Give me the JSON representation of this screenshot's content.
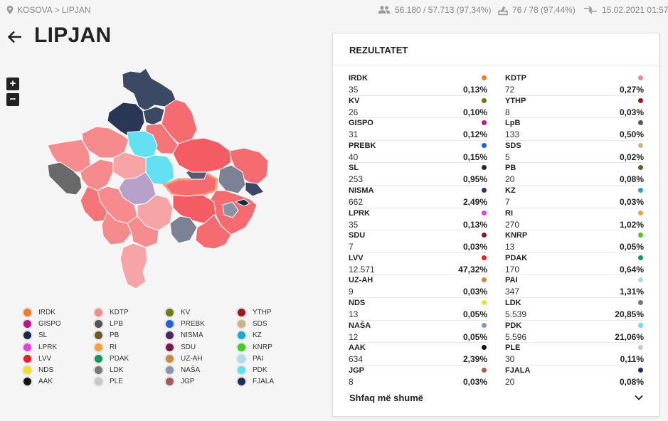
{
  "breadcrumb": {
    "root": "KOSOVA",
    "separator": ">",
    "current": "LIPJAN"
  },
  "stats": {
    "voters": "56.180 / 57.713 (97,34%)",
    "stations": "76 / 78 (97,44%)",
    "updated": "15.02.2021 01:57"
  },
  "page": {
    "title": "LIPJAN"
  },
  "zoom": {
    "in": "+",
    "out": "−"
  },
  "results": {
    "title": "REZULTATET",
    "show_more": "Shfaq më shumë",
    "left": [
      {
        "name": "IRDK",
        "votes": "35",
        "pct": "0,13%",
        "color": "#f47b20"
      },
      {
        "name": "KV",
        "votes": "26",
        "pct": "0,10%",
        "color": "#6e7b0a"
      },
      {
        "name": "GISPO",
        "votes": "31",
        "pct": "0,12%",
        "color": "#c0148c"
      },
      {
        "name": "PREBK",
        "votes": "40",
        "pct": "0,15%",
        "color": "#1f5fe6"
      },
      {
        "name": "SL",
        "votes": "253",
        "pct": "0,95%",
        "color": "#1b2a44"
      },
      {
        "name": "NISMA",
        "votes": "662",
        "pct": "2,49%",
        "color": "#4b2566"
      },
      {
        "name": "LPRK",
        "votes": "35",
        "pct": "0,13%",
        "color": "#e83fd6"
      },
      {
        "name": "SDU",
        "votes": "7",
        "pct": "0,03%",
        "color": "#7a1a44"
      },
      {
        "name": "LVV",
        "votes": "12.571",
        "pct": "47,32%",
        "color": "#e8202a"
      },
      {
        "name": "UZ-AH",
        "votes": "9",
        "pct": "0,03%",
        "color": "#c88a3c"
      },
      {
        "name": "NDS",
        "votes": "13",
        "pct": "0,05%",
        "color": "#f0e020"
      },
      {
        "name": "NAŠA",
        "votes": "12",
        "pct": "0,05%",
        "color": "#8c93ac"
      },
      {
        "name": "AAK",
        "votes": "634",
        "pct": "2,39%",
        "color": "#111111"
      },
      {
        "name": "JGP",
        "votes": "8",
        "pct": "0,03%",
        "color": "#a65a5a"
      }
    ],
    "right": [
      {
        "name": "KDTP",
        "votes": "72",
        "pct": "0,27%",
        "color": "#f08c8c"
      },
      {
        "name": "YTHP",
        "votes": "8",
        "pct": "0,03%",
        "color": "#a0141e"
      },
      {
        "name": "LpB",
        "votes": "133",
        "pct": "0,50%",
        "color": "#555555"
      },
      {
        "name": "SDS",
        "votes": "5",
        "pct": "0,02%",
        "color": "#c8b482"
      },
      {
        "name": "PB",
        "votes": "20",
        "pct": "0,08%",
        "color": "#6e5a28"
      },
      {
        "name": "KZ",
        "votes": "7",
        "pct": "0,03%",
        "color": "#18a8d8"
      },
      {
        "name": "RI",
        "votes": "270",
        "pct": "1,02%",
        "color": "#f5a03c"
      },
      {
        "name": "KNRP",
        "votes": "13",
        "pct": "0,05%",
        "color": "#40cc1a"
      },
      {
        "name": "PDAK",
        "votes": "170",
        "pct": "0,64%",
        "color": "#0e9a5a"
      },
      {
        "name": "PAI",
        "votes": "347",
        "pct": "1,31%",
        "color": "#a8dcf0"
      },
      {
        "name": "LDK",
        "votes": "5.539",
        "pct": "20,85%",
        "color": "#777777"
      },
      {
        "name": "PDK",
        "votes": "5.596",
        "pct": "21,06%",
        "color": "#5ee0f0"
      },
      {
        "name": "PLE",
        "votes": "30",
        "pct": "0,11%",
        "color": "#c8c8c8"
      },
      {
        "name": "FJALA",
        "votes": "20",
        "pct": "0,08%",
        "color": "#1e2e5a"
      }
    ]
  },
  "legend": [
    {
      "label": "IRDK",
      "color": "#f47b20"
    },
    {
      "label": "KDTP",
      "color": "#f08c8c"
    },
    {
      "label": "KV",
      "color": "#6e7b0a"
    },
    {
      "label": "YTHP",
      "color": "#a0141e"
    },
    {
      "label": "GISPO",
      "color": "#c0148c"
    },
    {
      "label": "LPB",
      "color": "#555555"
    },
    {
      "label": "PREBK",
      "color": "#1f5fe6"
    },
    {
      "label": "SDS",
      "color": "#c8b482"
    },
    {
      "label": "SL",
      "color": "#1b2a44"
    },
    {
      "label": "PB",
      "color": "#6e5a28"
    },
    {
      "label": "NISMA",
      "color": "#4b2566"
    },
    {
      "label": "KZ",
      "color": "#18a8d8"
    },
    {
      "label": "LPRK",
      "color": "#e83fd6"
    },
    {
      "label": "RI",
      "color": "#f5a03c"
    },
    {
      "label": "SDU",
      "color": "#7a1a44"
    },
    {
      "label": "KNRP",
      "color": "#40cc1a"
    },
    {
      "label": "LVV",
      "color": "#e8202a"
    },
    {
      "label": "PDAK",
      "color": "#0e9a5a"
    },
    {
      "label": "UZ-AH",
      "color": "#c88a3c"
    },
    {
      "label": "PAI",
      "color": "#a8dcf0"
    },
    {
      "label": "NDS",
      "color": "#f0e020"
    },
    {
      "label": "LDK",
      "color": "#777777"
    },
    {
      "label": "NAŠA",
      "color": "#8c93ac"
    },
    {
      "label": "PDK",
      "color": "#5ee0f0"
    },
    {
      "label": "AAK",
      "color": "#111111"
    },
    {
      "label": "PLE",
      "color": "#c8c8c8"
    },
    {
      "label": "JGP",
      "color": "#a65a5a"
    },
    {
      "label": "FJALA",
      "color": "#1e2e5a"
    }
  ]
}
